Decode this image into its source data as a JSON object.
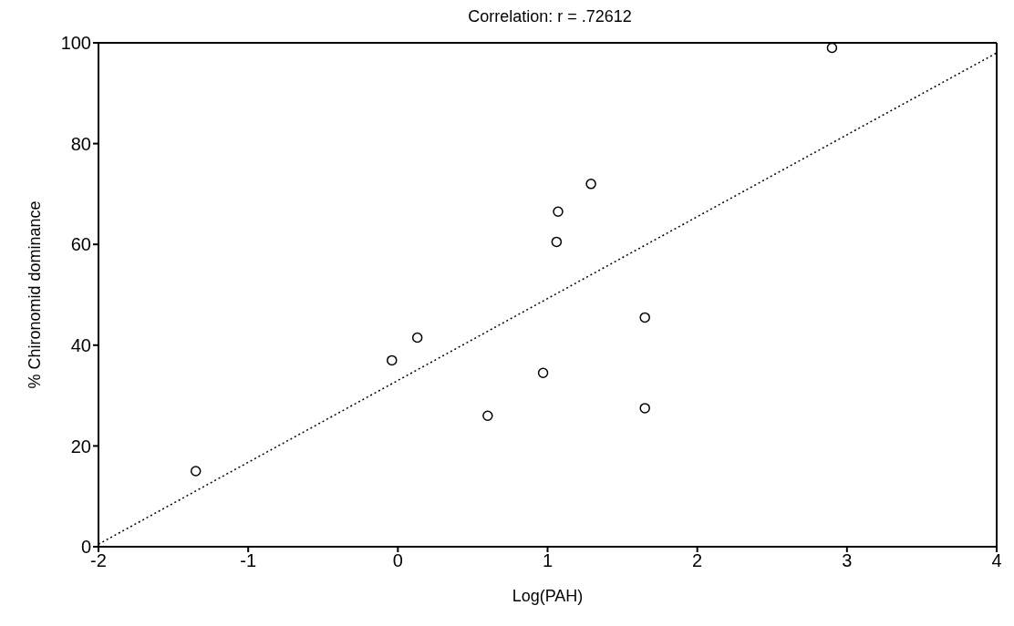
{
  "chart_data": {
    "type": "scatter",
    "title": "Correlation: r = .72612",
    "xlabel": "Log(PAH)",
    "ylabel": "% Chironomid dominance",
    "xlim": [
      -2,
      4
    ],
    "xticks": [
      -2,
      -1,
      0,
      1,
      2,
      3,
      4
    ],
    "ylim": [
      0,
      100
    ],
    "yticks": [
      0,
      20,
      40,
      60,
      80,
      100
    ],
    "marker": "circle",
    "series": [
      {
        "color": "#000000",
        "x": [
          -1.35,
          -0.04,
          0.13,
          0.6,
          0.97,
          1.06,
          1.07,
          1.29,
          1.65,
          1.65,
          2.9
        ],
        "values": [
          15,
          37,
          41.5,
          26,
          34.5,
          60.5,
          66.5,
          72,
          45.5,
          27.5,
          99
        ]
      },
      {
        "type": "line",
        "color": "#000000",
        "x": [
          -2,
          4
        ],
        "values": [
          0.5,
          98
        ],
        "line_style": "dotted",
        "marker": "none"
      }
    ]
  }
}
